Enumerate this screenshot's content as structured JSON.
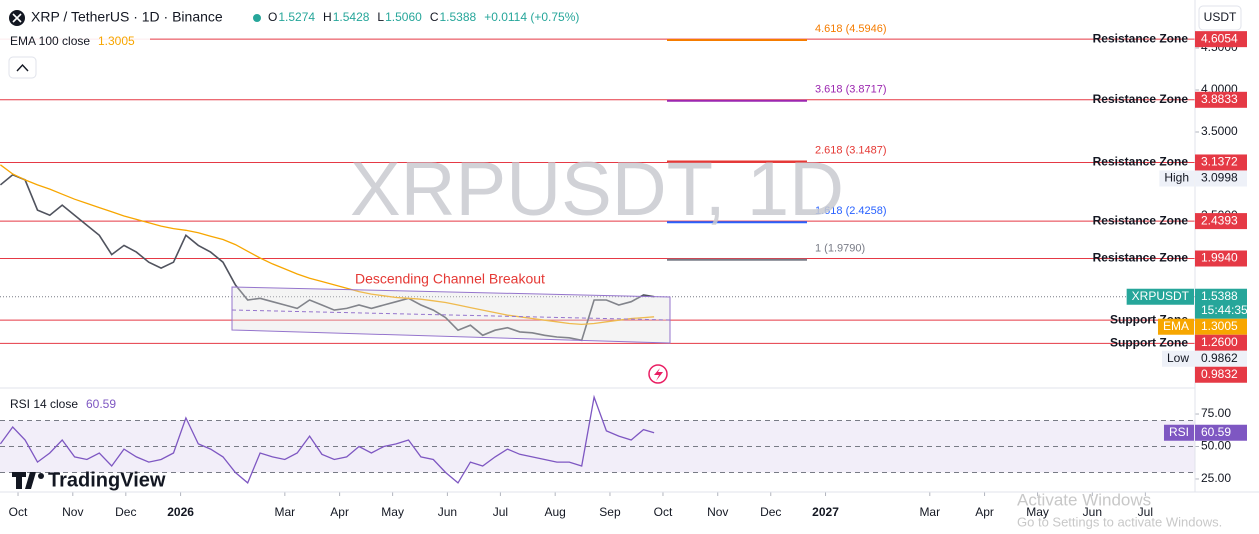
{
  "header": {
    "symbol": "XRP / TetherUS · 1D · Binance",
    "ohlc": [
      {
        "key": "O",
        "value": "1.5274"
      },
      {
        "key": "H",
        "value": "1.5428"
      },
      {
        "key": "L",
        "value": "1.5060"
      },
      {
        "key": "C",
        "value": "1.5388"
      }
    ],
    "change": "+0.0114 (+0.75%)",
    "currency": "USDT"
  },
  "watermark": "XRPUSDT, 1D",
  "branding": "TradingView",
  "windows": {
    "title": "Activate Windows",
    "subtitle": "Go to Settings to activate Windows."
  },
  "chart_data": [
    {
      "type": "line",
      "annotation": "Descending Channel Breakout",
      "x": [
        -10,
        -3,
        4,
        11,
        18,
        25,
        32,
        39,
        46,
        53,
        60,
        67,
        74,
        81,
        88,
        95,
        102,
        109,
        116,
        123,
        130,
        137,
        144,
        151,
        158,
        165,
        172,
        179,
        186,
        193,
        200,
        207,
        214,
        221,
        228,
        235,
        242,
        249,
        256,
        263,
        270,
        277,
        284,
        291,
        298,
        305,
        312,
        319,
        326,
        333,
        340,
        347,
        354,
        360
      ],
      "series": [
        {
          "name": "XRPUSDT",
          "color": "#50535e",
          "values": [
            2.87,
            2.99,
            2.93,
            2.57,
            2.51,
            2.63,
            2.51,
            2.39,
            2.27,
            2.04,
            2.15,
            2.07,
            1.95,
            1.88,
            1.95,
            2.27,
            2.15,
            2.07,
            1.95,
            1.68,
            1.5,
            1.52,
            1.48,
            1.44,
            1.4,
            1.5,
            1.44,
            1.38,
            1.4,
            1.44,
            1.4,
            1.44,
            1.48,
            1.52,
            1.44,
            1.38,
            1.29,
            1.14,
            1.2,
            1.08,
            1.14,
            1.17,
            1.12,
            1.11,
            1.08,
            1.06,
            1.05,
            1.02,
            1.5,
            1.5,
            1.44,
            1.48,
            1.56,
            1.5388
          ]
        },
        {
          "name": "EMA 100 close",
          "short_name": "EMA",
          "last_value": 1.3005,
          "color": "#f7a600",
          "values": [
            3.11,
            3.0,
            2.93,
            2.87,
            2.82,
            2.76,
            2.7,
            2.65,
            2.6,
            2.55,
            2.5,
            2.46,
            2.42,
            2.38,
            2.35,
            2.33,
            2.3,
            2.26,
            2.22,
            2.16,
            2.08,
            2.0,
            1.93,
            1.87,
            1.81,
            1.76,
            1.72,
            1.68,
            1.64,
            1.6,
            1.57,
            1.55,
            1.53,
            1.52,
            1.51,
            1.49,
            1.47,
            1.44,
            1.41,
            1.38,
            1.35,
            1.32,
            1.3,
            1.28,
            1.26,
            1.24,
            1.22,
            1.21,
            1.22,
            1.24,
            1.26,
            1.28,
            1.29,
            1.3005
          ]
        }
      ],
      "last_price": {
        "name": "XRPUSDT",
        "value": 1.5388,
        "countdown": "15:44:35",
        "color": "#26a69a"
      },
      "high": {
        "label": "High",
        "value": 3.0998
      },
      "low": {
        "label": "Low",
        "value": 0.9862
      },
      "levels": [
        {
          "label": "Resistance Zone",
          "value": 4.6054
        },
        {
          "label": "Resistance Zone",
          "value": 3.8833
        },
        {
          "label": "Resistance Zone",
          "value": 3.1372
        },
        {
          "label": "Resistance Zone",
          "value": 2.4393
        },
        {
          "label": "Resistance Zone",
          "value": 1.994,
          "value_label": "1.9940"
        },
        {
          "label": "Support Zone",
          "value": 1.26,
          "value_label": "1.2600"
        },
        {
          "label": "Support Zone",
          "value": 0.9832
        }
      ],
      "level_color": "#e53945",
      "fib": [
        {
          "label": "4.618 (4.5946)",
          "value": 4.5946,
          "color": "#f57c00"
        },
        {
          "label": "3.618 (3.8717)",
          "value": 3.8717,
          "color": "#9c27b0"
        },
        {
          "label": "2.618 (3.1487)",
          "value": 3.1487,
          "color": "#e53935"
        },
        {
          "label": "1.618 (2.4258)",
          "value": 2.4258,
          "color": "#2962ff"
        },
        {
          "label": "1 (1.9790)",
          "value": 1.979,
          "color": "#787b86"
        }
      ],
      "xlim": [
        -10.2,
        666.1
      ],
      "xticks": [
        {
          "value": 0,
          "label": "Oct"
        },
        {
          "value": 31,
          "label": "Nov"
        },
        {
          "value": 61,
          "label": "Dec"
        },
        {
          "value": 92,
          "label": "2026"
        },
        {
          "value": 151,
          "label": "Mar"
        },
        {
          "value": 182,
          "label": "Apr"
        },
        {
          "value": 212,
          "label": "May"
        },
        {
          "value": 243,
          "label": "Jun"
        },
        {
          "value": 273,
          "label": "Jul"
        },
        {
          "value": 304,
          "label": "Aug"
        },
        {
          "value": 335,
          "label": "Sep"
        },
        {
          "value": 365,
          "label": "Oct"
        },
        {
          "value": 396,
          "label": "Nov"
        },
        {
          "value": 426,
          "label": "Dec"
        },
        {
          "value": 457,
          "label": "2027"
        },
        {
          "value": 516,
          "label": "Mar"
        },
        {
          "value": 547,
          "label": "Apr"
        },
        {
          "value": 577,
          "label": "May"
        },
        {
          "value": 608,
          "label": "Jun"
        },
        {
          "value": 638,
          "label": "Jul"
        }
      ],
      "ylim": [
        0.4524,
        5.0714
      ],
      "yticks": [
        {
          "value": 2.5,
          "label": "2.5000"
        },
        {
          "value": 3,
          "label": "3.0000"
        },
        {
          "value": 3.5,
          "label": "3.5000"
        },
        {
          "value": 4,
          "label": "4.0000"
        },
        {
          "value": 4.5,
          "label": "4.5000"
        }
      ]
    },
    {
      "type": "line",
      "x": [
        -10,
        -3,
        4,
        11,
        18,
        25,
        32,
        39,
        46,
        53,
        60,
        67,
        74,
        81,
        88,
        95,
        102,
        109,
        116,
        123,
        130,
        137,
        144,
        151,
        158,
        165,
        172,
        179,
        186,
        193,
        200,
        207,
        214,
        221,
        228,
        235,
        242,
        249,
        256,
        263,
        270,
        277,
        284,
        291,
        298,
        305,
        312,
        319,
        326,
        333,
        340,
        347,
        354,
        360
      ],
      "series": [
        {
          "name": "RSI 14 close",
          "short_name": "RSI",
          "last_value": 60.59,
          "color": "#7e57c2",
          "values": [
            52,
            65,
            55,
            38,
            45,
            55,
            42,
            40,
            45,
            35,
            48,
            42,
            38,
            40,
            45,
            72,
            52,
            48,
            42,
            30,
            22,
            45,
            42,
            40,
            45,
            58,
            44,
            40,
            42,
            50,
            45,
            50,
            52,
            55,
            42,
            40,
            30,
            22,
            38,
            35,
            42,
            48,
            44,
            42,
            40,
            38,
            38,
            35,
            88,
            62,
            58,
            55,
            63,
            60.59
          ]
        }
      ],
      "bands": [
        70,
        50,
        30
      ],
      "xlim": [
        -10.2,
        666.1
      ],
      "ylim": [
        16.5,
        93.5
      ],
      "yticks": [
        {
          "value": 25,
          "label": "25.00"
        },
        {
          "value": 50,
          "label": "50.00"
        },
        {
          "value": 75,
          "label": "75.00"
        }
      ]
    }
  ]
}
